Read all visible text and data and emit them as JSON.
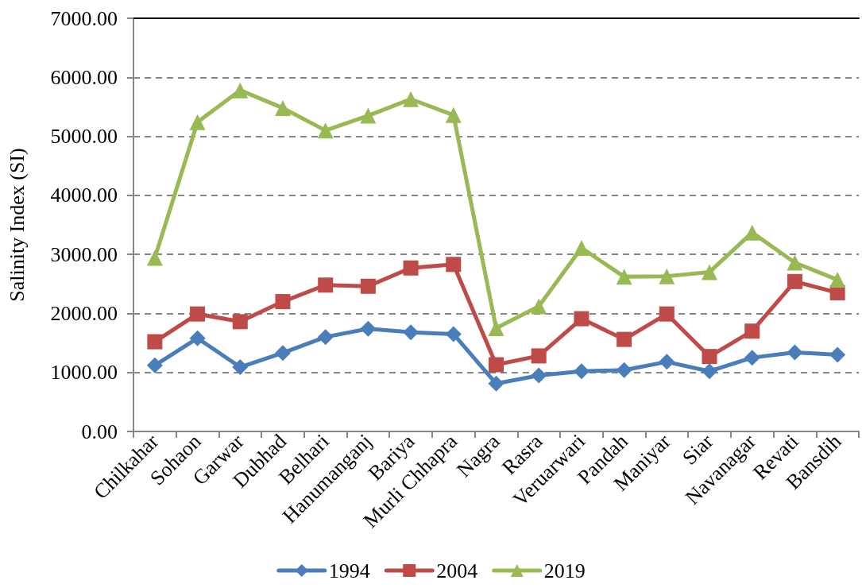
{
  "chart_data": {
    "type": "line",
    "ylabel": "Salinity Index (SI)",
    "categories": [
      "Chilkahar",
      "Sohaon",
      "Garwar",
      "Dubhad",
      "Belhari",
      "Hanumanganj",
      "Bariya",
      "Murli Chhapra",
      "Nagra",
      "Rasra",
      "Veruarwari",
      "Pandah",
      "Maniyar",
      "Siar",
      "Navanagar",
      "Revati",
      "Bansdih"
    ],
    "series": [
      {
        "name": "1994",
        "color": "#4a7ebb",
        "marker": "diamond",
        "values": [
          1120,
          1580,
          1090,
          1330,
          1600,
          1740,
          1680,
          1650,
          810,
          950,
          1020,
          1040,
          1180,
          1020,
          1250,
          1340,
          1300
        ]
      },
      {
        "name": "2004",
        "color": "#be4b48",
        "marker": "square",
        "values": [
          1520,
          1990,
          1860,
          2200,
          2480,
          2460,
          2770,
          2830,
          1130,
          1280,
          1910,
          1560,
          1990,
          1270,
          1700,
          2540,
          2350
        ]
      },
      {
        "name": "2019",
        "color": "#98b954",
        "marker": "triangle",
        "values": [
          2940,
          5240,
          5780,
          5480,
          5100,
          5350,
          5630,
          5360,
          1750,
          2120,
          3110,
          2620,
          2630,
          2700,
          3370,
          2860,
          2570
        ]
      }
    ],
    "ylim": [
      0,
      7000
    ],
    "yticks": [
      {
        "value": 0,
        "label": "0.00"
      },
      {
        "value": 1000,
        "label": "1000.00"
      },
      {
        "value": 2000,
        "label": "2000.00"
      },
      {
        "value": 3000,
        "label": "3000.00"
      },
      {
        "value": 4000,
        "label": "4000.00"
      },
      {
        "value": 5000,
        "label": "5000.00"
      },
      {
        "value": 6000,
        "label": "6000.00"
      },
      {
        "value": 7000,
        "label": "7000.00"
      }
    ],
    "grid": "y",
    "legend": "bottom",
    "line_style": "solid"
  }
}
